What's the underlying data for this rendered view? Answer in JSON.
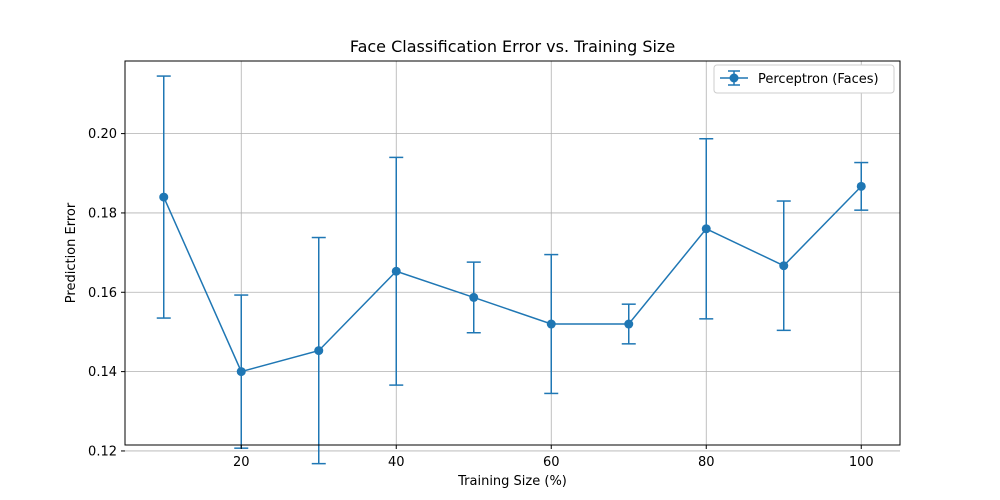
{
  "chart_data": {
    "type": "line",
    "title": "Face Classification Error vs. Training Size",
    "xlabel": "Training Size (%)",
    "ylabel": "Prediction Error",
    "xlim": [
      5,
      105
    ],
    "ylim": [
      0.1215,
      0.2183
    ],
    "xticks": [
      20,
      40,
      60,
      80,
      100
    ],
    "yticks": [
      0.12,
      0.14,
      0.16,
      0.18,
      0.2
    ],
    "ytick_labels": [
      "0.12",
      "0.14",
      "0.16",
      "0.18",
      "0.20"
    ],
    "grid": true,
    "legend_position": "top-right",
    "color": "#1f77b4",
    "series": [
      {
        "name": "Perceptron (Faces)",
        "x": [
          10,
          20,
          30,
          40,
          50,
          60,
          70,
          80,
          90,
          100
        ],
        "y": [
          0.184,
          0.14,
          0.1453,
          0.1653,
          0.1587,
          0.152,
          0.152,
          0.176,
          0.1667,
          0.1867
        ],
        "error": [
          0.0305,
          0.0193,
          0.0285,
          0.0287,
          0.0089,
          0.0175,
          0.005,
          0.0227,
          0.0163,
          0.006
        ]
      }
    ]
  }
}
